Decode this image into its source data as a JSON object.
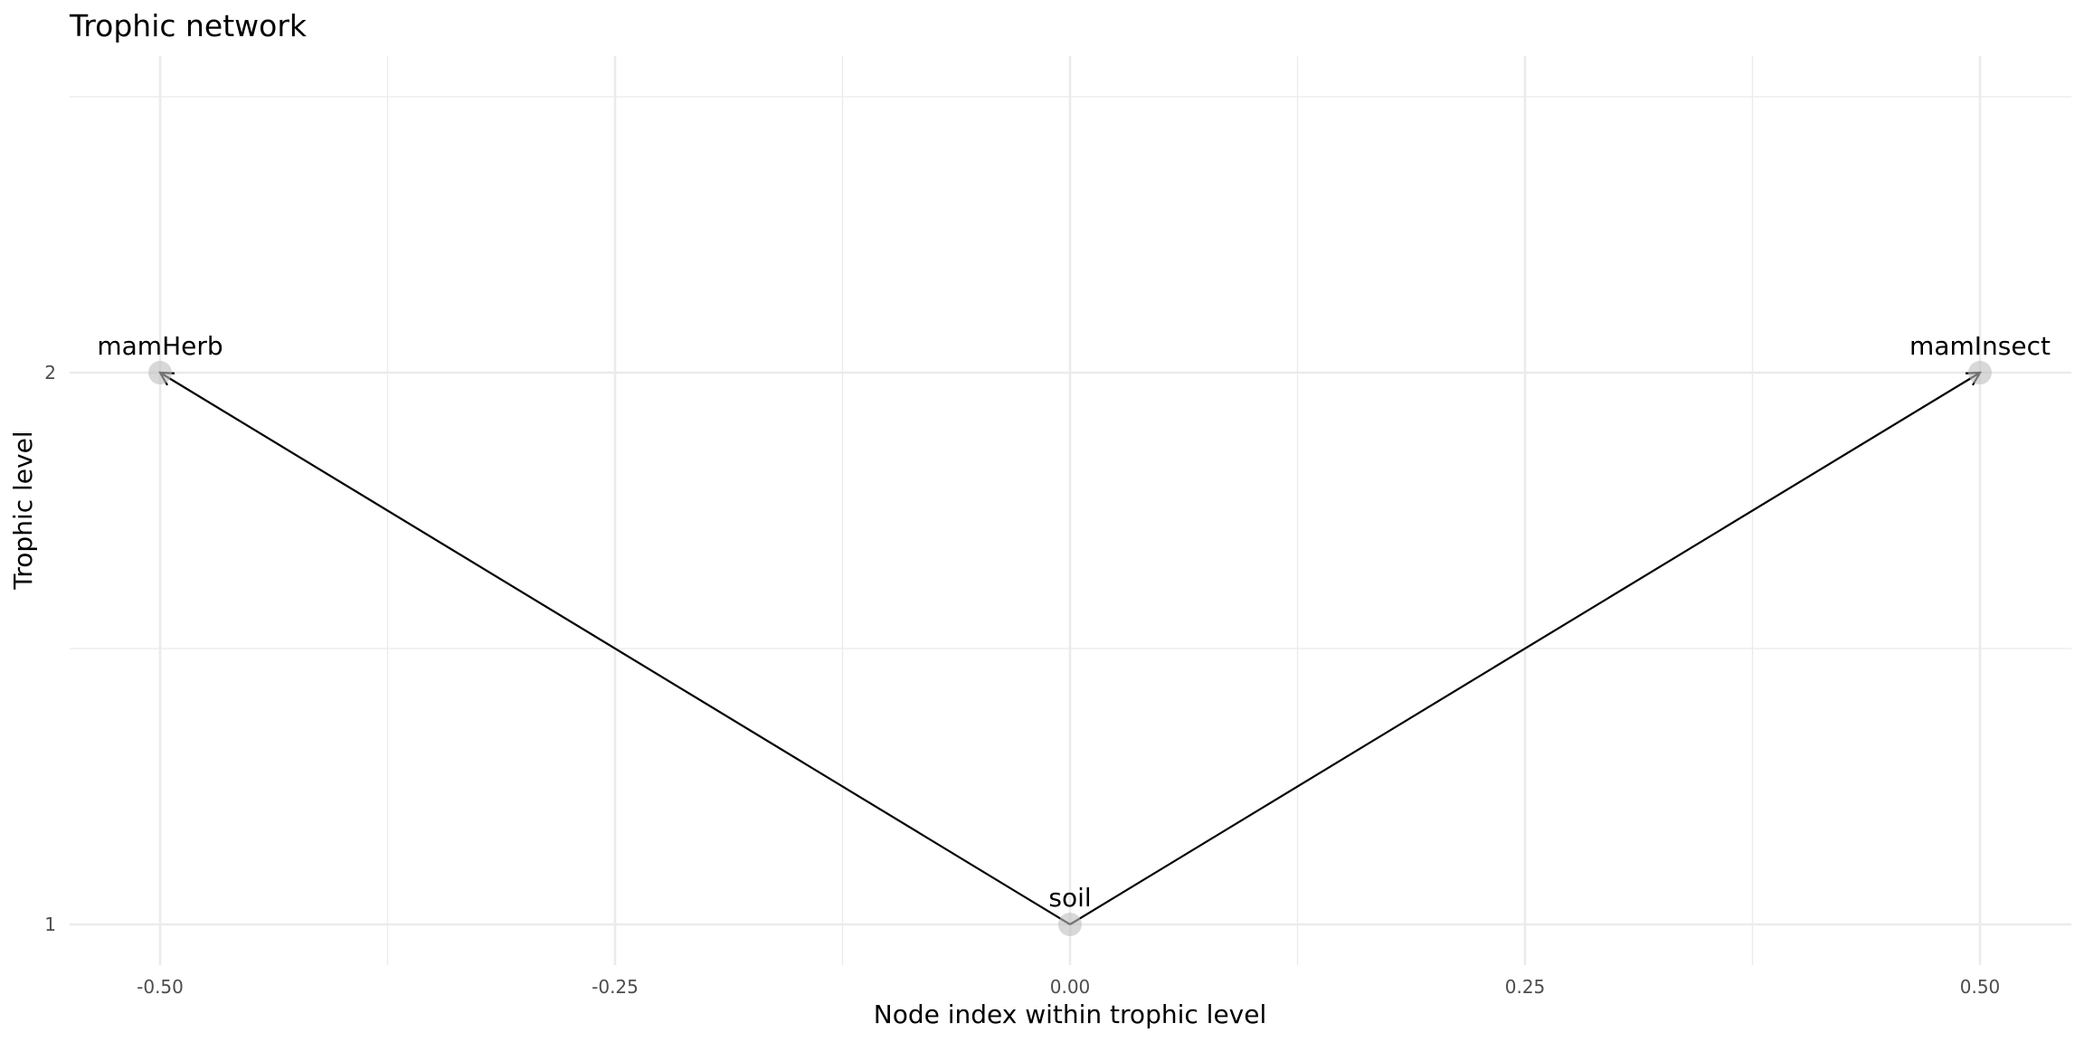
{
  "chart_data": {
    "type": "network",
    "title": "Trophic network",
    "xlabel": "Node index within trophic level",
    "ylabel": "Trophic level",
    "xlim": [
      -0.55,
      0.55
    ],
    "ylim": [
      0.93,
      2.58
    ],
    "x_ticks": [
      -0.5,
      -0.25,
      0.0,
      0.25,
      0.5
    ],
    "x_tick_labels": [
      "-0.50",
      "-0.25",
      "0.00",
      "0.25",
      "0.50"
    ],
    "y_ticks": [
      1,
      2
    ],
    "y_tick_labels": [
      "1",
      "2"
    ],
    "grid": true,
    "nodes": [
      {
        "name": "mamHerb",
        "x": -0.5,
        "y": 2
      },
      {
        "name": "soil",
        "x": 0.0,
        "y": 1
      },
      {
        "name": "mamInsect",
        "x": 0.5,
        "y": 2
      }
    ],
    "edges": [
      {
        "from": "soil",
        "to": "mamHerb"
      },
      {
        "from": "soil",
        "to": "mamInsect"
      }
    ],
    "colors": {
      "node": "#bebebe",
      "edge": "#000000",
      "grid": "#ebebeb"
    }
  }
}
